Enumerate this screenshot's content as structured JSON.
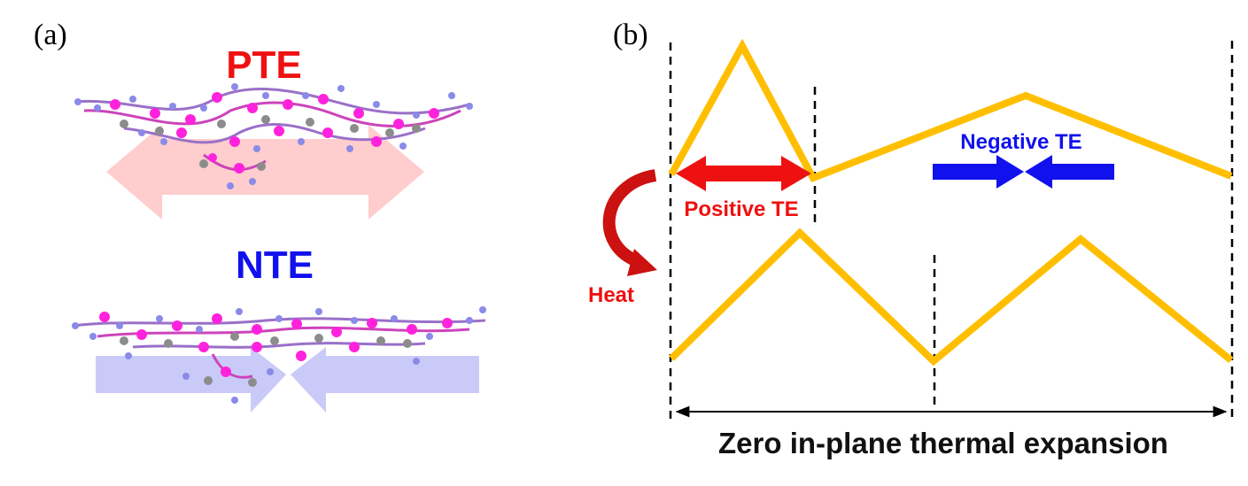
{
  "panel_a": {
    "label": "(a)",
    "top_title": "PTE",
    "bottom_title": "NTE"
  },
  "panel_b": {
    "label": "(b)",
    "positive_label": "Positive TE",
    "negative_label": "Negative TE",
    "heat_label": "Heat",
    "caption": "Zero in-plane thermal expansion"
  },
  "colors": {
    "pte": "#ee1111",
    "nte": "#1111ee",
    "wave": "#ffbf00",
    "heat": "#dd1111",
    "pte_arrow_fill": "#ffc8c8",
    "nte_arrow_fill": "#c4c4f8",
    "atom_magenta": "#ff22dd",
    "atom_blue": "#8a8ae8",
    "atom_gray": "#8c8c8c"
  }
}
